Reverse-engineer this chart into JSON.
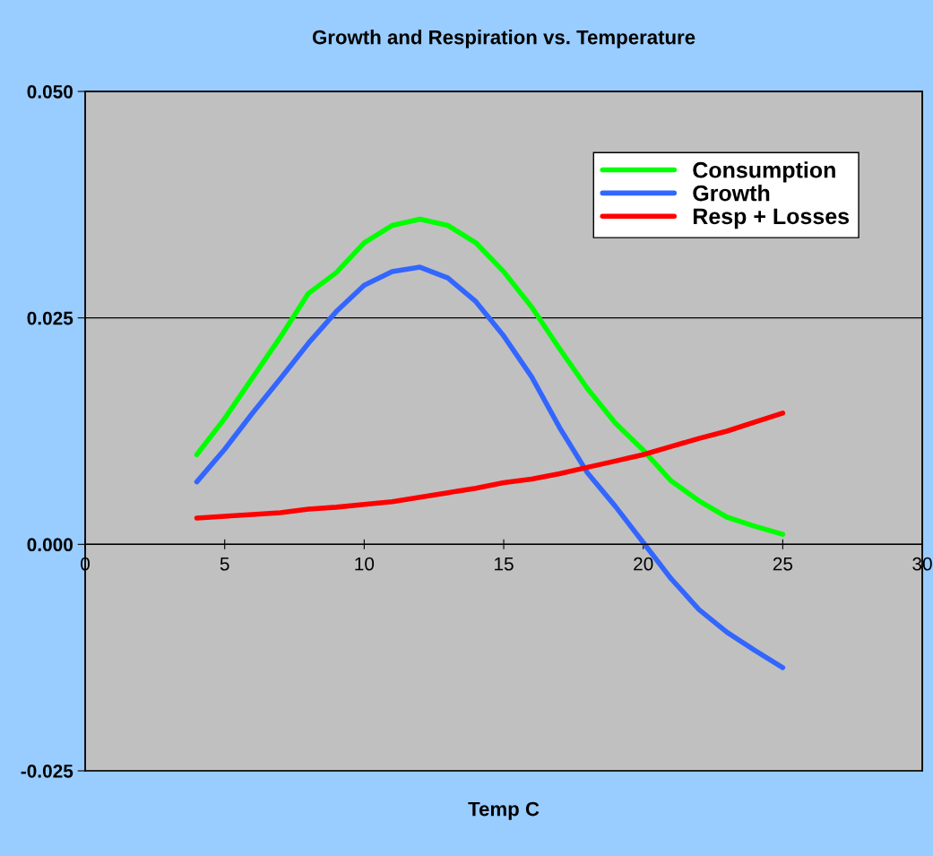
{
  "chart_data": {
    "type": "line",
    "title": "Growth and Respiration vs. Temperature",
    "xlabel": "Temp C",
    "x": [
      4,
      5,
      6,
      7,
      8,
      9,
      10,
      11,
      12,
      13,
      14,
      15,
      16,
      17,
      18,
      19,
      20,
      21,
      22,
      23,
      24,
      25
    ],
    "series": [
      {
        "name": "Consumption",
        "color": "#00ff00",
        "values": [
          0.0099,
          0.0139,
          0.0184,
          0.0229,
          0.0277,
          0.03,
          0.0333,
          0.0352,
          0.0359,
          0.0352,
          0.0333,
          0.0301,
          0.0262,
          0.0216,
          0.0172,
          0.0134,
          0.0104,
          0.007,
          0.0048,
          0.003,
          0.002,
          0.0011
        ]
      },
      {
        "name": "Growth",
        "color": "#3366ff",
        "values": [
          0.0069,
          0.0105,
          0.0145,
          0.0183,
          0.0222,
          0.0257,
          0.0286,
          0.0301,
          0.0306,
          0.0294,
          0.0268,
          0.023,
          0.0185,
          0.0129,
          0.0079,
          0.0042,
          0.0002,
          -0.0038,
          -0.0072,
          -0.0097,
          -0.0117,
          -0.0136
        ]
      },
      {
        "name": "Resp + Losses",
        "color": "#ff0000",
        "values": [
          0.0029,
          0.0031,
          0.0033,
          0.0035,
          0.0039,
          0.0041,
          0.0044,
          0.0047,
          0.0052,
          0.0057,
          0.0062,
          0.0068,
          0.0072,
          0.0078,
          0.0085,
          0.0092,
          0.0099,
          0.0108,
          0.0117,
          0.0125,
          0.0135,
          0.0145
        ]
      }
    ],
    "xlim": [
      0,
      30
    ],
    "xticks": [
      0,
      5,
      10,
      15,
      20,
      25,
      30
    ],
    "ylim": [
      -0.025,
      0.05
    ],
    "yticks": [
      {
        "value": -0.025,
        "label": "-0.025"
      },
      {
        "value": 0,
        "label": "0.000"
      },
      {
        "value": 0.025,
        "label": "0.025"
      },
      {
        "value": 0.05,
        "label": "0.050"
      }
    ],
    "grid": "y",
    "legend": "upper right",
    "marker": "none",
    "line_style": "solid"
  }
}
